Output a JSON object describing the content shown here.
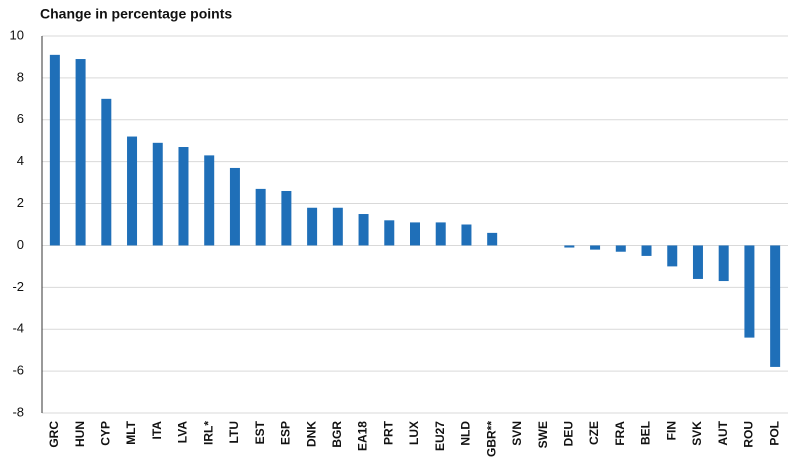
{
  "chart_data": {
    "type": "bar",
    "title": "Change in percentage points",
    "categories": [
      "GRC",
      "HUN",
      "CYP",
      "MLT",
      "ITA",
      "LVA",
      "IRL*",
      "LTU",
      "EST",
      "ESP",
      "DNK",
      "BGR",
      "EA18",
      "PRT",
      "LUX",
      "EU27",
      "NLD",
      "GBR**",
      "SVN",
      "SWE",
      "DEU",
      "CZE",
      "FRA",
      "BEL",
      "FIN",
      "SVK",
      "AUT",
      "ROU",
      "POL"
    ],
    "values": [
      9.1,
      8.9,
      7.0,
      5.2,
      4.9,
      4.7,
      4.3,
      3.7,
      2.7,
      2.6,
      1.8,
      1.8,
      1.5,
      1.2,
      1.1,
      1.1,
      1.0,
      0.6,
      0,
      0,
      -0.1,
      -0.2,
      -0.3,
      -0.5,
      -1.0,
      -1.6,
      -1.7,
      -4.4,
      -5.8
    ],
    "color": "#1f6fb8",
    "ylim": [
      -8,
      10
    ],
    "yticks": [
      -8,
      -6,
      -4,
      -2,
      0,
      2,
      4,
      6,
      8,
      10
    ],
    "grid": true
  }
}
